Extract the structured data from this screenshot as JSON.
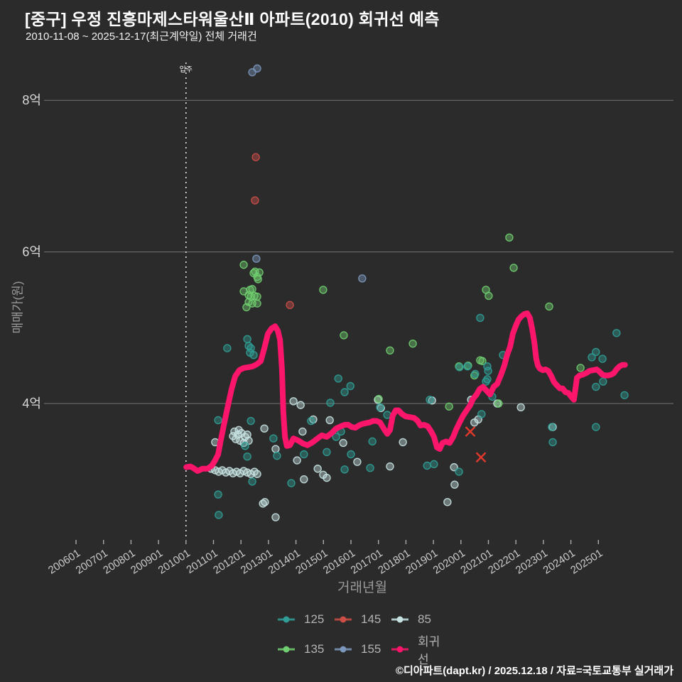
{
  "header": {
    "title": "[중구] 우정 진흥마제스타워울산Ⅱ 아파트(2010) 회귀선 예측",
    "subtitle": "2010-11-08 ~ 2025-12-17(최근계약일) 전체 거래건"
  },
  "footer": {
    "credit": "©디아파트(dapt.kr) / 2025.12.18 / 자료=국토교통부 실거래가"
  },
  "axes": {
    "y_title": "매매가(원)",
    "x_title": "거래년월"
  },
  "annotation": {
    "move_in_label": "입주",
    "move_in_x": 2010.0
  },
  "legend": {
    "rows": [
      [
        {
          "label": "125",
          "color": "#2f9e96"
        },
        {
          "label": "145",
          "color": "#cc4f47"
        },
        {
          "label": "85",
          "color": "#c6e2e2"
        }
      ],
      [
        {
          "label": "135",
          "color": "#6fce6f"
        },
        {
          "label": "155",
          "color": "#7b97bd"
        },
        {
          "label": "회귀선",
          "color": "#fb156b"
        }
      ]
    ]
  },
  "chart_data": {
    "type": "scatter",
    "title": "[중구] 우정 진흥마제스타워울산Ⅱ 아파트(2010) 회귀선 예측",
    "xlabel": "거래년월",
    "ylabel": "매매가(원)",
    "unit": "억원",
    "xlim": [
      2004.9,
      2027.7
    ],
    "ylim": [
      2.15,
      8.55
    ],
    "grid": true,
    "legend_position": "bottom-center",
    "x_ticks": [
      "200601",
      "200701",
      "200801",
      "200901",
      "201001",
      "201101",
      "201201",
      "201301",
      "201401",
      "201501",
      "201601",
      "201701",
      "201801",
      "201901",
      "202001",
      "202101",
      "202201",
      "202301",
      "202401",
      "202501"
    ],
    "y_ticks": [
      {
        "value": 8,
        "label": "8억"
      },
      {
        "value": 6,
        "label": "6억"
      },
      {
        "value": 4,
        "label": "4억"
      }
    ],
    "series": [
      {
        "name": "85",
        "color": "#c6e2e2",
        "points": [
          [
            2011.76,
            3.63
          ],
          [
            2011.89,
            3.59
          ],
          [
            2012.02,
            3.61
          ],
          [
            2012.15,
            3.56
          ],
          [
            2011.97,
            3.51
          ],
          [
            2011.81,
            3.53
          ],
          [
            2012.1,
            3.48
          ],
          [
            2012.23,
            3.59
          ],
          [
            2012.28,
            3.51
          ],
          [
            2011.92,
            3.65
          ],
          [
            2011.71,
            3.57
          ],
          [
            2010.91,
            3.14
          ],
          [
            2011.06,
            3.12
          ],
          [
            2011.19,
            3.1
          ],
          [
            2011.32,
            3.12
          ],
          [
            2011.45,
            3.09
          ],
          [
            2011.58,
            3.11
          ],
          [
            2011.71,
            3.08
          ],
          [
            2011.84,
            3.1
          ],
          [
            2011.97,
            3.08
          ],
          [
            2012.1,
            3.11
          ],
          [
            2012.23,
            3.09
          ],
          [
            2012.36,
            3.07
          ],
          [
            2012.49,
            3.1
          ],
          [
            2012.59,
            3.07
          ],
          [
            2011.06,
            3.49
          ],
          [
            2012.85,
            3.67
          ],
          [
            2012.8,
            2.68
          ],
          [
            2012.87,
            2.7
          ],
          [
            2013.26,
            2.5
          ],
          [
            2013.26,
            3.4
          ],
          [
            2013.91,
            4.03
          ],
          [
            2014.17,
            3.98
          ],
          [
            2014.24,
            3.63
          ],
          [
            2014.04,
            3.25
          ],
          [
            2014.29,
            3.0
          ],
          [
            2014.79,
            3.14
          ],
          [
            2014.99,
            3.06
          ],
          [
            2015.23,
            3.78
          ],
          [
            2014.63,
            3.79
          ],
          [
            2015.72,
            3.48
          ],
          [
            2016.23,
            3.23
          ],
          [
            2017.42,
            3.17
          ],
          [
            2017.89,
            3.49
          ],
          [
            2016.98,
            4.05
          ],
          [
            2017.09,
            3.94
          ],
          [
            2015.12,
            3.02
          ],
          [
            2018.95,
            4.04
          ],
          [
            2020.37,
            4.05
          ],
          [
            2022.18,
            3.95
          ],
          [
            2019.75,
            3.16
          ],
          [
            2019.77,
            2.93
          ],
          [
            2019.51,
            2.7
          ],
          [
            2020.49,
            3.75
          ],
          [
            2020.63,
            3.79
          ],
          [
            2021.32,
            4.0
          ],
          [
            2023.34,
            3.69
          ]
        ]
      },
      {
        "name": "135",
        "color": "#6fce6f",
        "points": [
          [
            2012.1,
            5.83
          ],
          [
            2012.51,
            5.74
          ],
          [
            2012.67,
            5.73
          ],
          [
            2012.59,
            5.67
          ],
          [
            2012.62,
            5.64
          ],
          [
            2012.46,
            5.72
          ],
          [
            2012.1,
            5.48
          ],
          [
            2012.33,
            5.5
          ],
          [
            2012.41,
            5.51
          ],
          [
            2012.28,
            5.43
          ],
          [
            2012.36,
            5.41
          ],
          [
            2012.49,
            5.42
          ],
          [
            2012.59,
            5.41
          ],
          [
            2012.28,
            5.34
          ],
          [
            2012.41,
            5.32
          ],
          [
            2012.59,
            5.32
          ],
          [
            2012.2,
            5.27
          ],
          [
            2014.99,
            5.5
          ],
          [
            2015.74,
            4.9
          ],
          [
            2017.42,
            4.7
          ],
          [
            2018.25,
            4.79
          ],
          [
            2017.01,
            4.06
          ],
          [
            2019.57,
            3.96
          ],
          [
            2019.93,
            4.49
          ],
          [
            2020.26,
            4.5
          ],
          [
            2020.7,
            4.57
          ],
          [
            2020.78,
            4.56
          ],
          [
            2020.49,
            4.37
          ],
          [
            2020.91,
            5.5
          ],
          [
            2021.01,
            5.42
          ],
          [
            2021.37,
            4.0
          ],
          [
            2021.76,
            6.19
          ],
          [
            2021.92,
            5.79
          ],
          [
            2023.21,
            5.28
          ],
          [
            2024.35,
            4.47
          ]
        ]
      },
      {
        "name": "125",
        "color": "#2f9e96",
        "points": [
          [
            2011.5,
            4.73
          ],
          [
            2012.28,
            4.76
          ],
          [
            2012.36,
            4.73
          ],
          [
            2012.33,
            4.67
          ],
          [
            2012.46,
            4.64
          ],
          [
            2012.23,
            4.85
          ],
          [
            2011.17,
            3.78
          ],
          [
            2012.36,
            3.77
          ],
          [
            2013.18,
            3.54
          ],
          [
            2013.31,
            3.31
          ],
          [
            2012.15,
            3.44
          ],
          [
            2012.23,
            3.3
          ],
          [
            2011.17,
            2.8
          ],
          [
            2011.19,
            2.53
          ],
          [
            2012.41,
            2.97
          ],
          [
            2014.55,
            3.77
          ],
          [
            2014.29,
            3.33
          ],
          [
            2013.83,
            2.95
          ],
          [
            2015.25,
            4.01
          ],
          [
            2015.64,
            3.63
          ],
          [
            2015.46,
            3.56
          ],
          [
            2016.78,
            3.5
          ],
          [
            2015.12,
            3.36
          ],
          [
            2016.0,
            3.33
          ],
          [
            2015.77,
            3.13
          ],
          [
            2016.7,
            3.15
          ],
          [
            2018.77,
            3.18
          ],
          [
            2019.02,
            3.2
          ],
          [
            2019.93,
            3.1
          ],
          [
            2018.87,
            4.05
          ],
          [
            2017.32,
            3.85
          ],
          [
            2015.54,
            4.33
          ],
          [
            2015.98,
            4.23
          ],
          [
            2015.77,
            4.15
          ],
          [
            2017.06,
            3.95
          ],
          [
            2020.7,
            5.13
          ],
          [
            2019.95,
            4.48
          ],
          [
            2020.24,
            4.49
          ],
          [
            2020.96,
            4.49
          ],
          [
            2020.99,
            4.43
          ],
          [
            2020.96,
            4.32
          ],
          [
            2020.91,
            4.29
          ],
          [
            2021.14,
            4.09
          ],
          [
            2020.52,
            4.39
          ],
          [
            2020.75,
            3.86
          ],
          [
            2021.53,
            4.64
          ],
          [
            2024.91,
            4.68
          ],
          [
            2024.76,
            4.61
          ],
          [
            2025.15,
            4.59
          ],
          [
            2025.17,
            4.29
          ],
          [
            2024.91,
            4.22
          ],
          [
            2025.95,
            4.11
          ],
          [
            2025.66,
            4.93
          ],
          [
            2024.91,
            3.69
          ],
          [
            2023.34,
            3.49
          ],
          [
            2023.31,
            3.69
          ]
        ]
      },
      {
        "name": "155",
        "color": "#7b97bd",
        "points": [
          [
            2012.41,
            8.37
          ],
          [
            2012.59,
            8.42
          ],
          [
            2012.56,
            5.91
          ],
          [
            2016.41,
            5.65
          ]
        ]
      },
      {
        "name": "145",
        "color": "#cc4f47",
        "points": [
          [
            2012.54,
            7.25
          ],
          [
            2012.51,
            6.68
          ],
          [
            2013.78,
            5.3
          ]
        ]
      }
    ],
    "cancelled_marks": {
      "color": "#e0392c",
      "points": [
        [
          2020.34,
          3.63
        ],
        [
          2020.73,
          3.29
        ]
      ]
    },
    "regression": {
      "name": "회귀선",
      "color": "#fb156b",
      "points": [
        [
          2010.01,
          3.16
        ],
        [
          2010.16,
          3.17
        ],
        [
          2010.26,
          3.15
        ],
        [
          2010.42,
          3.11
        ],
        [
          2010.6,
          3.14
        ],
        [
          2010.78,
          3.14
        ],
        [
          2010.94,
          3.18
        ],
        [
          2011.06,
          3.25
        ],
        [
          2011.17,
          3.33
        ],
        [
          2011.25,
          3.49
        ],
        [
          2011.37,
          3.7
        ],
        [
          2011.5,
          3.93
        ],
        [
          2011.66,
          4.19
        ],
        [
          2011.79,
          4.36
        ],
        [
          2011.94,
          4.44
        ],
        [
          2012.1,
          4.47
        ],
        [
          2012.28,
          4.48
        ],
        [
          2012.43,
          4.49
        ],
        [
          2012.59,
          4.52
        ],
        [
          2012.72,
          4.56
        ],
        [
          2012.85,
          4.73
        ],
        [
          2012.98,
          4.92
        ],
        [
          2013.11,
          4.99
        ],
        [
          2013.24,
          5.02
        ],
        [
          2013.34,
          4.96
        ],
        [
          2013.42,
          4.84
        ],
        [
          2013.49,
          4.45
        ],
        [
          2013.54,
          3.89
        ],
        [
          2013.6,
          3.56
        ],
        [
          2013.67,
          3.44
        ],
        [
          2013.78,
          3.45
        ],
        [
          2013.91,
          3.54
        ],
        [
          2014.09,
          3.51
        ],
        [
          2014.27,
          3.47
        ],
        [
          2014.42,
          3.45
        ],
        [
          2014.61,
          3.49
        ],
        [
          2014.79,
          3.54
        ],
        [
          2014.94,
          3.58
        ],
        [
          2015.12,
          3.56
        ],
        [
          2015.3,
          3.61
        ],
        [
          2015.46,
          3.67
        ],
        [
          2015.64,
          3.7
        ],
        [
          2015.77,
          3.72
        ],
        [
          2015.9,
          3.72
        ],
        [
          2016.03,
          3.69
        ],
        [
          2016.16,
          3.68
        ],
        [
          2016.29,
          3.71
        ],
        [
          2016.41,
          3.73
        ],
        [
          2016.54,
          3.74
        ],
        [
          2016.67,
          3.75
        ],
        [
          2016.8,
          3.77
        ],
        [
          2016.93,
          3.77
        ],
        [
          2017.06,
          3.75
        ],
        [
          2017.19,
          3.67
        ],
        [
          2017.32,
          3.6
        ],
        [
          2017.42,
          3.65
        ],
        [
          2017.52,
          3.84
        ],
        [
          2017.63,
          3.91
        ],
        [
          2017.73,
          3.91
        ],
        [
          2017.86,
          3.86
        ],
        [
          2017.99,
          3.83
        ],
        [
          2018.15,
          3.82
        ],
        [
          2018.3,
          3.81
        ],
        [
          2018.43,
          3.77
        ],
        [
          2018.53,
          3.71
        ],
        [
          2018.66,
          3.72
        ],
        [
          2018.79,
          3.7
        ],
        [
          2018.92,
          3.63
        ],
        [
          2019.02,
          3.56
        ],
        [
          2019.13,
          3.42
        ],
        [
          2019.23,
          3.4
        ],
        [
          2019.33,
          3.48
        ],
        [
          2019.46,
          3.5
        ],
        [
          2019.59,
          3.48
        ],
        [
          2019.72,
          3.56
        ],
        [
          2019.82,
          3.65
        ],
        [
          2019.95,
          3.75
        ],
        [
          2020.08,
          3.84
        ],
        [
          2020.21,
          3.91
        ],
        [
          2020.34,
          3.98
        ],
        [
          2020.44,
          4.06
        ],
        [
          2020.57,
          4.12
        ],
        [
          2020.68,
          4.19
        ],
        [
          2020.8,
          4.22
        ],
        [
          2020.93,
          4.17
        ],
        [
          2021.06,
          4.12
        ],
        [
          2021.19,
          4.22
        ],
        [
          2021.32,
          4.26
        ],
        [
          2021.45,
          4.37
        ],
        [
          2021.58,
          4.5
        ],
        [
          2021.68,
          4.64
        ],
        [
          2021.79,
          4.75
        ],
        [
          2021.89,
          4.92
        ],
        [
          2022.0,
          5.03
        ],
        [
          2022.1,
          5.11
        ],
        [
          2022.2,
          5.15
        ],
        [
          2022.31,
          5.18
        ],
        [
          2022.41,
          5.19
        ],
        [
          2022.51,
          5.13
        ],
        [
          2022.59,
          4.99
        ],
        [
          2022.67,
          4.81
        ],
        [
          2022.74,
          4.59
        ],
        [
          2022.8,
          4.5
        ],
        [
          2022.87,
          4.46
        ],
        [
          2022.98,
          4.44
        ],
        [
          2023.08,
          4.45
        ],
        [
          2023.18,
          4.43
        ],
        [
          2023.29,
          4.36
        ],
        [
          2023.39,
          4.28
        ],
        [
          2023.49,
          4.24
        ],
        [
          2023.6,
          4.2
        ],
        [
          2023.7,
          4.2
        ],
        [
          2023.8,
          4.15
        ],
        [
          2023.91,
          4.14
        ],
        [
          2024.01,
          4.09
        ],
        [
          2024.11,
          4.05
        ],
        [
          2024.22,
          4.34
        ],
        [
          2024.32,
          4.37
        ],
        [
          2024.42,
          4.38
        ],
        [
          2024.55,
          4.4
        ],
        [
          2024.68,
          4.43
        ],
        [
          2024.81,
          4.44
        ],
        [
          2024.94,
          4.45
        ],
        [
          2025.04,
          4.42
        ],
        [
          2025.15,
          4.38
        ],
        [
          2025.25,
          4.37
        ],
        [
          2025.35,
          4.37
        ],
        [
          2025.46,
          4.38
        ],
        [
          2025.56,
          4.4
        ],
        [
          2025.66,
          4.45
        ],
        [
          2025.77,
          4.49
        ],
        [
          2025.87,
          4.51
        ],
        [
          2025.97,
          4.51
        ]
      ]
    }
  }
}
